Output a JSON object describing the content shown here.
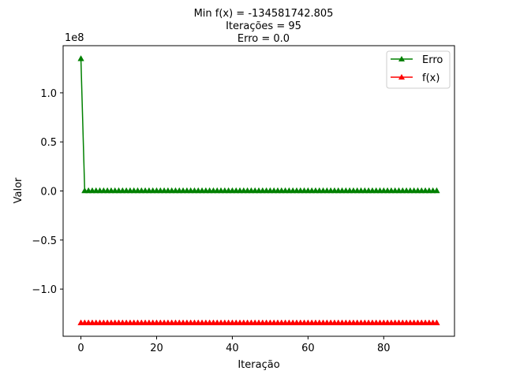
{
  "chart_data": {
    "type": "line",
    "title_lines": [
      "Min f(x) = -134581742.805",
      "Iterações = 95",
      "Erro = 0.0"
    ],
    "xlabel": "Iteração",
    "ylabel": "Valor",
    "y_offset_label": "1e8",
    "xlim": [
      -4.7,
      98.7
    ],
    "ylim": [
      -1.4806,
      1.4806
    ],
    "y_scale": 100000000,
    "x_ticks": [
      0,
      20,
      40,
      60,
      80
    ],
    "x_tick_labels": [
      "0",
      "20",
      "40",
      "60",
      "80"
    ],
    "y_ticks": [
      -1.0,
      -0.5,
      0.0,
      0.5,
      1.0
    ],
    "y_tick_labels": [
      "−1.0",
      "−0.5",
      "0.0",
      "0.5",
      "1.0"
    ],
    "grid": false,
    "legend_position": "top-right",
    "marker": "triangle-up",
    "n_points": 95,
    "series": [
      {
        "name": "Erro",
        "color": "#008000",
        "values_first": [
          134581742.805
        ],
        "values_rest_constant": 0.0
      },
      {
        "name": "f(x)",
        "color": "#ff0000",
        "values_first": [],
        "values_rest_constant": -134581742.805
      }
    ]
  }
}
